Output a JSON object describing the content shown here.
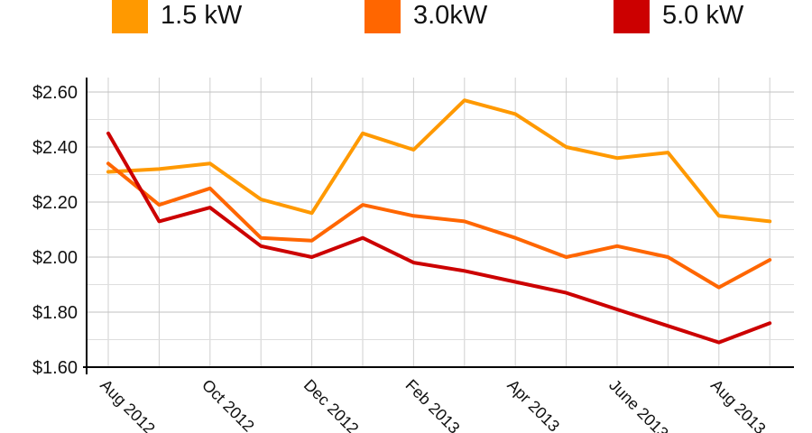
{
  "chart_data": {
    "type": "line",
    "title": "",
    "xlabel": "",
    "ylabel": "",
    "x": [
      "Aug 2012",
      "Sep 2012",
      "Oct 2012",
      "Nov 2012",
      "Dec 2012",
      "Jan 2013",
      "Feb 2013",
      "Mar 2013",
      "Apr 2013",
      "May 2013",
      "June 2013",
      "July 2013",
      "Aug 2013",
      "Sep 2013"
    ],
    "x_tick_labels": [
      "Aug 2012",
      "Oct 2012",
      "Dec 2012",
      "Feb 2013",
      "Apr 2013",
      "June 2013",
      "Aug 2013"
    ],
    "y_tick_labels": [
      "$1.60",
      "$1.80",
      "$2.00",
      "$2.20",
      "$2.40",
      "$2.60"
    ],
    "ylim": [
      1.6,
      2.65
    ],
    "grid": true,
    "legend_position": "top",
    "series": [
      {
        "name": "1.5 kW",
        "color": "#ff9900",
        "values": [
          2.31,
          2.32,
          2.34,
          2.21,
          2.16,
          2.45,
          2.39,
          2.57,
          2.52,
          2.4,
          2.36,
          2.38,
          2.15,
          2.13
        ]
      },
      {
        "name": "3.0kW",
        "color": "#ff6600",
        "values": [
          2.34,
          2.19,
          2.25,
          2.07,
          2.06,
          2.19,
          2.15,
          2.13,
          2.07,
          2.0,
          2.04,
          2.0,
          1.89,
          1.99
        ]
      },
      {
        "name": "5.0 kW",
        "color": "#cc0000",
        "values": [
          2.45,
          2.13,
          2.18,
          2.04,
          2.0,
          2.07,
          1.98,
          1.95,
          1.91,
          1.87,
          1.81,
          1.75,
          1.69,
          1.76
        ]
      }
    ]
  }
}
